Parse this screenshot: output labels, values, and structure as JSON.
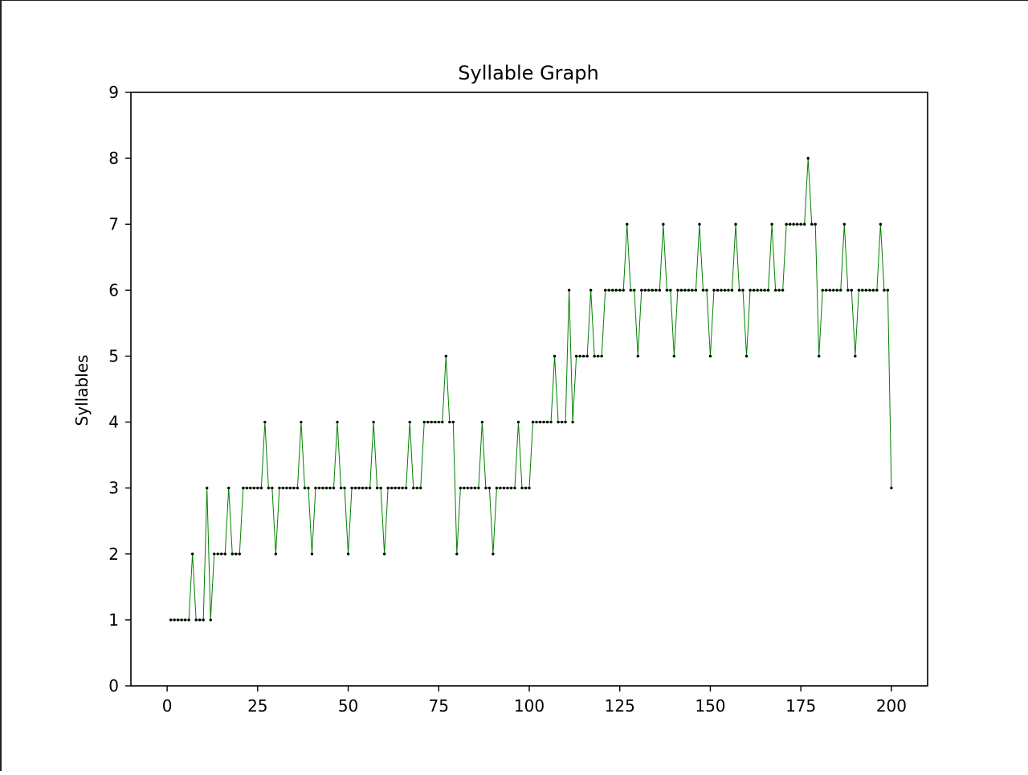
{
  "chart_data": {
    "type": "line",
    "title": "Syllable Graph",
    "xlabel": "",
    "ylabel": "Syllables",
    "xlim": [
      -10,
      210
    ],
    "ylim": [
      0,
      9
    ],
    "x_ticks": [
      0,
      25,
      50,
      75,
      100,
      125,
      150,
      175,
      200
    ],
    "y_ticks": [
      0,
      1,
      2,
      3,
      4,
      5,
      6,
      7,
      8,
      9
    ],
    "grid": false,
    "line_color": "#008000",
    "marker_color": "#000000",
    "x_start": 1,
    "y": [
      1,
      1,
      1,
      1,
      1,
      1,
      2,
      1,
      1,
      1,
      3,
      1,
      2,
      2,
      2,
      2,
      3,
      2,
      2,
      2,
      3,
      3,
      3,
      3,
      3,
      3,
      4,
      3,
      3,
      2,
      3,
      3,
      3,
      3,
      3,
      3,
      4,
      3,
      3,
      2,
      3,
      3,
      3,
      3,
      3,
      3,
      4,
      3,
      3,
      2,
      3,
      3,
      3,
      3,
      3,
      3,
      4,
      3,
      3,
      2,
      3,
      3,
      3,
      3,
      3,
      3,
      4,
      3,
      3,
      3,
      4,
      4,
      4,
      4,
      4,
      4,
      5,
      4,
      4,
      2,
      3,
      3,
      3,
      3,
      3,
      3,
      4,
      3,
      3,
      2,
      3,
      3,
      3,
      3,
      3,
      3,
      4,
      3,
      3,
      3,
      4,
      4,
      4,
      4,
      4,
      4,
      5,
      4,
      4,
      4,
      6,
      4,
      5,
      5,
      5,
      5,
      6,
      5,
      5,
      5,
      6,
      6,
      6,
      6,
      6,
      6,
      7,
      6,
      6,
      5,
      6,
      6,
      6,
      6,
      6,
      6,
      7,
      6,
      6,
      5,
      6,
      6,
      6,
      6,
      6,
      6,
      7,
      6,
      6,
      5,
      6,
      6,
      6,
      6,
      6,
      6,
      7,
      6,
      6,
      5,
      6,
      6,
      6,
      6,
      6,
      6,
      7,
      6,
      6,
      6,
      7,
      7,
      7,
      7,
      7,
      7,
      8,
      7,
      7,
      5,
      6,
      6,
      6,
      6,
      6,
      6,
      7,
      6,
      6,
      5,
      6,
      6,
      6,
      6,
      6,
      6,
      7,
      6,
      6,
      3
    ]
  }
}
